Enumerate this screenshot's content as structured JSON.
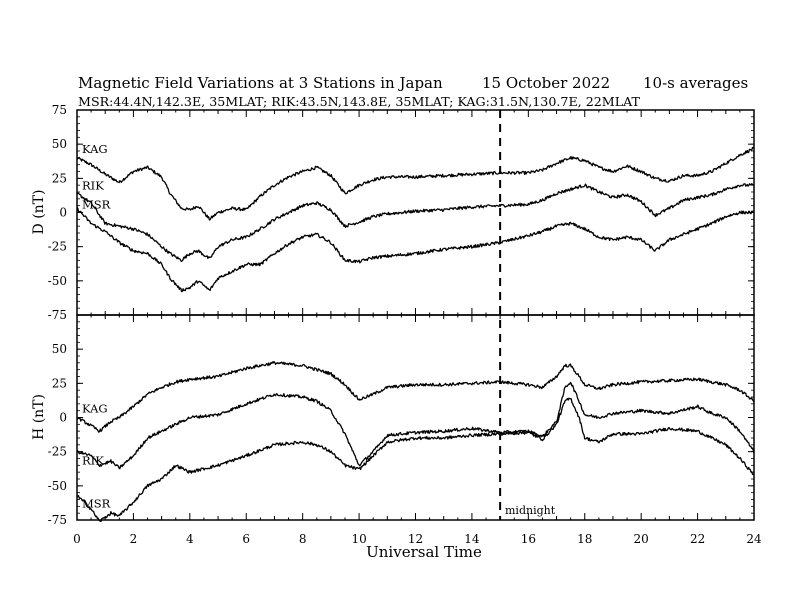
{
  "chart_data": {
    "type": "line",
    "title": "Magnetic Field Variations at 3 Stations in Japan",
    "date": "15 October 2022",
    "resolution": "10-s averages",
    "subtitle": "MSR:44.4N,142.3E, 35MLAT;  RIK:43.5N,143.8E, 35MLAT;  KAG:31.5N,130.7E, 22MLAT",
    "xlabel": "Universal Time",
    "xlim": [
      0,
      24
    ],
    "x_ticks": [
      "0",
      "2",
      "4",
      "6",
      "8",
      "10",
      "12",
      "14",
      "16",
      "18",
      "20",
      "22",
      "24"
    ],
    "y_ticks": [
      "75",
      "50",
      "25",
      "0",
      "-25",
      "-50",
      "-75"
    ],
    "annotation": {
      "x": 15,
      "label": "midnight"
    },
    "panels": [
      {
        "ylabel": "D (nT)",
        "ylim": [
          -75,
          75
        ],
        "series": [
          {
            "name": "KAG",
            "x": [
              0,
              0.5,
              1,
              1.5,
              2,
              2.5,
              3,
              3.3,
              3.7,
              4,
              4.3,
              4.7,
              5,
              5.5,
              6,
              6.5,
              7,
              7.5,
              8,
              8.5,
              9,
              9.5,
              10,
              10.5,
              11,
              12,
              13,
              14,
              15,
              16,
              16.5,
              17,
              17.5,
              18,
              18.5,
              19,
              19.5,
              20,
              20.5,
              21,
              21.5,
              22,
              22.5,
              23,
              23.5,
              24
            ],
            "y": [
              40,
              35,
              28,
              22,
              30,
              33,
              26,
              14,
              3,
              2,
              5,
              -5,
              0,
              3,
              2,
              12,
              20,
              26,
              30,
              33,
              27,
              14,
              20,
              24,
              26,
              26,
              27,
              28,
              29,
              29,
              31,
              36,
              40,
              38,
              33,
              30,
              34,
              30,
              25,
              23,
              27,
              27,
              30,
              36,
              42,
              47
            ]
          },
          {
            "name": "RIK",
            "x": [
              0,
              0.5,
              1,
              1.5,
              2,
              2.5,
              3,
              3.3,
              3.7,
              4,
              4.3,
              4.7,
              5,
              5.5,
              6,
              6.5,
              7,
              7.5,
              8,
              8.5,
              9,
              9.5,
              10,
              10.5,
              11,
              12,
              13,
              14,
              15,
              16,
              16.5,
              17,
              17.5,
              18,
              18.5,
              19,
              19.5,
              20,
              20.5,
              21,
              21.5,
              22,
              22.5,
              23,
              23.5,
              24
            ],
            "y": [
              14,
              7,
              -8,
              -10,
              -12,
              -16,
              -25,
              -30,
              -35,
              -30,
              -28,
              -34,
              -25,
              -20,
              -18,
              -12,
              -5,
              0,
              5,
              7,
              2,
              -10,
              -7,
              -3,
              -1,
              1,
              2,
              4,
              5,
              6,
              9,
              14,
              17,
              20,
              15,
              11,
              13,
              8,
              -2,
              3,
              9,
              11,
              13,
              17,
              20,
              20
            ]
          },
          {
            "name": "MSR",
            "x": [
              0,
              0.5,
              1,
              1.5,
              2,
              2.5,
              3,
              3.3,
              3.7,
              4,
              4.3,
              4.7,
              5,
              5.5,
              6,
              6.5,
              7,
              7.5,
              8,
              8.5,
              9,
              9.5,
              10,
              10.5,
              11,
              12,
              13,
              14,
              15,
              16,
              16.5,
              17,
              17.5,
              18,
              18.5,
              19,
              19.5,
              20,
              20.5,
              21,
              21.5,
              22,
              22.5,
              23,
              23.5,
              24
            ],
            "y": [
              3,
              -8,
              -14,
              -22,
              -28,
              -30,
              -38,
              -48,
              -57,
              -55,
              -50,
              -57,
              -48,
              -43,
              -38,
              -38,
              -30,
              -23,
              -18,
              -16,
              -22,
              -35,
              -36,
              -33,
              -32,
              -30,
              -27,
              -25,
              -22,
              -17,
              -14,
              -10,
              -8,
              -12,
              -18,
              -20,
              -18,
              -20,
              -28,
              -20,
              -16,
              -12,
              -8,
              -3,
              0,
              0
            ]
          }
        ]
      },
      {
        "ylabel": "H (nT)",
        "ylim": [
          -75,
          75
        ],
        "series": [
          {
            "name": "KAG",
            "x": [
              0,
              0.5,
              0.8,
              1.2,
              1.5,
              2,
              2.5,
              3,
              3.5,
              4,
              5,
              6,
              7,
              8,
              8.5,
              9,
              9.5,
              10,
              10.5,
              11,
              12,
              13,
              14,
              15,
              16,
              16.5,
              17,
              17.3,
              17.5,
              17.8,
              18,
              18.5,
              19,
              20,
              21,
              22,
              22.5,
              23,
              23.5,
              24
            ],
            "y": [
              0,
              -6,
              -10,
              -3,
              0,
              8,
              17,
              22,
              26,
              28,
              30,
              36,
              40,
              38,
              35,
              32,
              24,
              13,
              17,
              22,
              24,
              24,
              25,
              26,
              24,
              22,
              30,
              38,
              38,
              30,
              24,
              21,
              24,
              26,
              27,
              28,
              26,
              24,
              20,
              12
            ]
          },
          {
            "name": "RIK",
            "x": [
              0,
              0.5,
              0.8,
              1.2,
              1.5,
              2,
              2.5,
              3,
              3.5,
              4,
              5,
              6,
              7,
              8,
              8.5,
              9,
              9.5,
              10,
              10.5,
              11,
              12,
              13,
              14,
              15,
              16,
              16.5,
              17,
              17.3,
              17.5,
              17.8,
              18,
              18.5,
              19,
              20,
              21,
              22,
              22.5,
              23,
              23.5,
              24
            ],
            "y": [
              -25,
              -28,
              -35,
              -32,
              -37,
              -28,
              -15,
              -10,
              -5,
              0,
              2,
              10,
              17,
              15,
              12,
              5,
              -12,
              -35,
              -25,
              -13,
              -11,
              -10,
              -8,
              -11,
              -10,
              -14,
              -3,
              22,
              26,
              12,
              2,
              0,
              3,
              5,
              3,
              8,
              3,
              0,
              -10,
              -25
            ]
          },
          {
            "name": "MSR",
            "x": [
              0,
              0.5,
              0.8,
              1.2,
              1.5,
              2,
              2.5,
              3,
              3.5,
              4,
              5,
              6,
              7,
              8,
              8.5,
              9,
              9.5,
              10,
              10.5,
              11,
              12,
              13,
              14,
              15,
              16,
              16.5,
              17,
              17.3,
              17.5,
              17.8,
              18,
              18.5,
              19,
              20,
              21,
              22,
              22.5,
              23,
              23.5,
              24
            ],
            "y": [
              -57,
              -67,
              -76,
              -70,
              -72,
              -62,
              -50,
              -45,
              -35,
              -40,
              -35,
              -28,
              -20,
              -18,
              -20,
              -25,
              -35,
              -38,
              -28,
              -18,
              -15,
              -15,
              -13,
              -12,
              -11,
              -16,
              -5,
              12,
              14,
              0,
              -15,
              -18,
              -12,
              -12,
              -8,
              -10,
              -15,
              -20,
              -30,
              -42
            ]
          }
        ]
      }
    ]
  }
}
